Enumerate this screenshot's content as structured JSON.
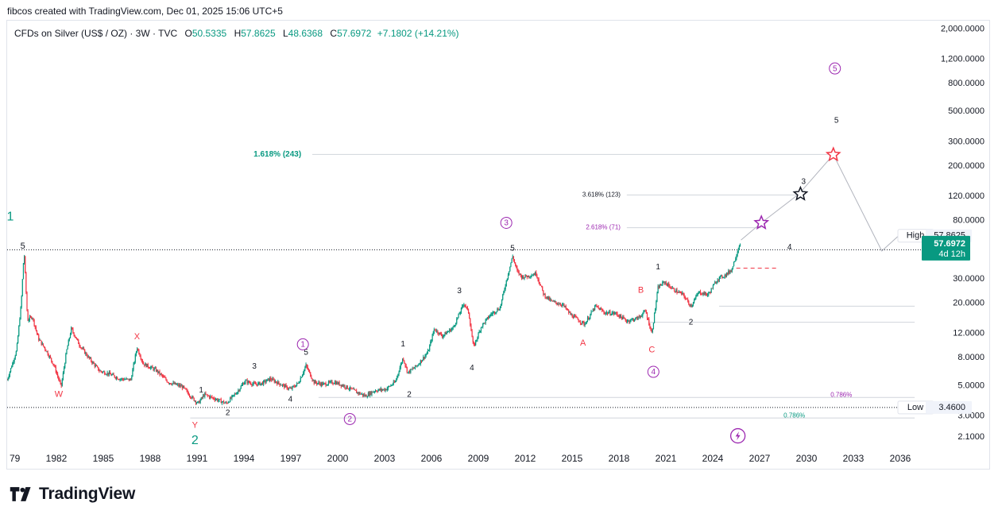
{
  "attribution": "fibcos created with TradingView.com, Dec 01, 2025 15:06 UTC+5",
  "legend": {
    "symbol": "CFDs on Silver (US$ / OZ) · 3W · TVC",
    "open_label": "O",
    "open": "50.5335",
    "high_label": "H",
    "high": "57.8625",
    "low_label": "L",
    "low": "48.6368",
    "close_label": "C",
    "close": "57.6972",
    "change": "+7.1802 (+14.21%)"
  },
  "branding": {
    "logo_text": "TradingView",
    "logo_icon": "tradingview-logo-icon"
  },
  "colors": {
    "up": "#089981",
    "down": "#f23645",
    "wave_purple": "#9c27b0",
    "wave_teal": "#089981",
    "wave_red": "#f23645",
    "text": "#131722",
    "grid_line": "#d1d4dc"
  },
  "chart_data": {
    "type": "candlestick",
    "scale": "log",
    "ylim": [
      1.75,
      2300
    ],
    "xlim": [
      1979.0,
      2037.5
    ],
    "x_ticks": [
      "79",
      "1982",
      "1985",
      "1988",
      "1991",
      "1994",
      "1997",
      "2000",
      "2003",
      "2006",
      "2009",
      "2012",
      "2015",
      "2018",
      "2021",
      "2024",
      "2027",
      "2030",
      "2033",
      "2036"
    ],
    "y_ticks": [
      {
        "value": 2000,
        "label": "2,000.0000"
      },
      {
        "value": 1200,
        "label": "1,200.0000"
      },
      {
        "value": 800,
        "label": "800.0000"
      },
      {
        "value": 500,
        "label": "500.0000"
      },
      {
        "value": 300,
        "label": "300.0000"
      },
      {
        "value": 200,
        "label": "200.0000"
      },
      {
        "value": 120,
        "label": "120.0000"
      },
      {
        "value": 80,
        "label": "80.0000"
      },
      {
        "value": 30,
        "label": "30.0000"
      },
      {
        "value": 20,
        "label": "20.0000"
      },
      {
        "value": 12,
        "label": "12.0000"
      },
      {
        "value": 8,
        "label": "8.0000"
      },
      {
        "value": 5,
        "label": "5.0000"
      },
      {
        "value": 3,
        "label": "3.0000"
      },
      {
        "value": 2.1,
        "label": "2.1000"
      }
    ],
    "price_path": [
      [
        1979.0,
        5.5
      ],
      [
        1979.6,
        9
      ],
      [
        1979.9,
        20
      ],
      [
        1980.08,
        48
      ],
      [
        1980.3,
        15
      ],
      [
        1980.6,
        16
      ],
      [
        1981.0,
        11
      ],
      [
        1981.5,
        9
      ],
      [
        1982.0,
        7
      ],
      [
        1982.45,
        4.9
      ],
      [
        1982.8,
        9
      ],
      [
        1983.1,
        13
      ],
      [
        1983.6,
        10
      ],
      [
        1984.2,
        8
      ],
      [
        1984.9,
        6.4
      ],
      [
        1985.5,
        6.1
      ],
      [
        1986.2,
        5.6
      ],
      [
        1986.9,
        5.5
      ],
      [
        1987.3,
        9.5
      ],
      [
        1987.7,
        7.2
      ],
      [
        1988.5,
        6.5
      ],
      [
        1989.3,
        5.3
      ],
      [
        1990.2,
        4.9
      ],
      [
        1990.8,
        4.1
      ],
      [
        1991.2,
        3.7
      ],
      [
        1991.6,
        4.3
      ],
      [
        1992.3,
        4.0
      ],
      [
        1993.0,
        3.7
      ],
      [
        1993.7,
        4.5
      ],
      [
        1994.2,
        5.4
      ],
      [
        1994.8,
        5.1
      ],
      [
        1995.3,
        5.2
      ],
      [
        1995.8,
        5.6
      ],
      [
        1996.5,
        5.1
      ],
      [
        1997.1,
        4.7
      ],
      [
        1997.6,
        5.2
      ],
      [
        1998.1,
        7.0
      ],
      [
        1998.6,
        5.3
      ],
      [
        1999.2,
        5.1
      ],
      [
        1999.9,
        5.3
      ],
      [
        2000.5,
        5.0
      ],
      [
        2001.3,
        4.5
      ],
      [
        2001.9,
        4.2
      ],
      [
        2002.5,
        4.6
      ],
      [
        2003.2,
        4.7
      ],
      [
        2003.8,
        5.3
      ],
      [
        2004.3,
        8.0
      ],
      [
        2004.6,
        6.2
      ],
      [
        2005.2,
        7.0
      ],
      [
        2005.9,
        8.8
      ],
      [
        2006.3,
        13.0
      ],
      [
        2006.8,
        11.5
      ],
      [
        2007.5,
        13.2
      ],
      [
        2008.2,
        20.0
      ],
      [
        2008.5,
        17.0
      ],
      [
        2008.8,
        9.5
      ],
      [
        2009.3,
        13.5
      ],
      [
        2009.9,
        16.5
      ],
      [
        2010.5,
        18.5
      ],
      [
        2010.9,
        29.0
      ],
      [
        2011.3,
        44.0
      ],
      [
        2011.6,
        34.0
      ],
      [
        2011.9,
        31.0
      ],
      [
        2012.3,
        31.5
      ],
      [
        2012.8,
        33.0
      ],
      [
        2013.3,
        23.0
      ],
      [
        2013.8,
        20.5
      ],
      [
        2014.5,
        19.5
      ],
      [
        2015.0,
        16.5
      ],
      [
        2015.9,
        14.0
      ],
      [
        2016.6,
        19.0
      ],
      [
        2017.2,
        17.0
      ],
      [
        2017.9,
        16.8
      ],
      [
        2018.6,
        14.8
      ],
      [
        2019.3,
        15.5
      ],
      [
        2019.8,
        17.5
      ],
      [
        2020.2,
        12.0
      ],
      [
        2020.6,
        26.0
      ],
      [
        2021.0,
        28.5
      ],
      [
        2021.6,
        25.0
      ],
      [
        2022.2,
        23.0
      ],
      [
        2022.7,
        19.0
      ],
      [
        2023.2,
        24.0
      ],
      [
        2023.8,
        23.0
      ],
      [
        2024.4,
        30.0
      ],
      [
        2024.9,
        32.0
      ],
      [
        2025.3,
        35.0
      ],
      [
        2025.9,
        57.7
      ]
    ],
    "projection": [
      [
        2025.9,
        57.7
      ],
      [
        2027.2,
        77
      ],
      [
        2029.6,
        125
      ],
      [
        2031.8,
        242
      ],
      [
        2034.9,
        48
      ],
      [
        2036.3,
        67
      ]
    ],
    "horizontal_lines": [
      {
        "name": "previous-high-line",
        "value": 49,
        "x1": 1979.0,
        "x2": 2037.5,
        "style": "dotted",
        "color": "#131722"
      },
      {
        "name": "low-line",
        "value": 3.46,
        "x1": 1979.0,
        "x2": 2037.5,
        "style": "dotted",
        "color": "#131722"
      },
      {
        "name": "fib-1618-line",
        "value": 243,
        "x1": 1998.5,
        "x2": 2031.8,
        "style": "solid",
        "color": "#d1d4dc"
      },
      {
        "name": "fib-3618-line",
        "value": 123,
        "x1": 2018.6,
        "x2": 2029.7,
        "style": "solid",
        "color": "#d1d4dc"
      },
      {
        "name": "fib-2618-line",
        "value": 71,
        "x1": 2018.6,
        "x2": 2027.2,
        "style": "solid",
        "color": "#d1d4dc"
      },
      {
        "name": "level-19-line",
        "value": 19,
        "x1": 2024.5,
        "x2": 2037.0,
        "style": "solid",
        "color": "#d1d4dc"
      },
      {
        "name": "level-14-line",
        "value": 14.5,
        "x1": 2020.0,
        "x2": 2037.0,
        "style": "solid",
        "color": "#d1d4dc"
      },
      {
        "name": "fib-0786-upper-line",
        "value": 4.1,
        "x1": 1998.9,
        "x2": 2037.0,
        "style": "solid",
        "color": "#d1d4dc"
      },
      {
        "name": "fib-0786-lower-line",
        "value": 2.9,
        "x1": 1990.7,
        "x2": 2037.0,
        "style": "solid",
        "color": "#d1d4dc"
      },
      {
        "name": "support-dashed-line",
        "value": 36,
        "x1": 2025.6,
        "x2": 2028.3,
        "style": "dashed",
        "color": "#f23645"
      }
    ],
    "annotations": [
      {
        "text": "1.618% (243)",
        "x": 1997.8,
        "y": 243,
        "color": "#089981",
        "size": 10,
        "weight": "bold",
        "anchor": "end"
      },
      {
        "text": "3.618% (123)",
        "x": 2018.2,
        "y": 123,
        "color": "#131722",
        "size": 8,
        "weight": "normal",
        "anchor": "end"
      },
      {
        "text": "2.618% (71)",
        "x": 2018.2,
        "y": 71,
        "color": "#9c27b0",
        "size": 8,
        "weight": "normal",
        "anchor": "end"
      },
      {
        "text": "0.786%",
        "x": 2033.0,
        "y": 4.25,
        "color": "#9c27b0",
        "size": 8,
        "weight": "normal",
        "anchor": "end"
      },
      {
        "text": "0.786%",
        "x": 2030.0,
        "y": 3.0,
        "color": "#089981",
        "size": 8,
        "weight": "normal",
        "anchor": "end"
      },
      {
        "text": "1",
        "x": 1979.2,
        "y": 85,
        "color": "#089981",
        "size": 16,
        "weight": "normal",
        "anchor": "middle"
      },
      {
        "text": "5",
        "x": 1980.0,
        "y": 52,
        "color": "#131722",
        "size": 11,
        "weight": "normal",
        "anchor": "middle"
      },
      {
        "text": "W",
        "x": 1982.3,
        "y": 4.3,
        "color": "#f23645",
        "size": 11,
        "weight": "normal",
        "anchor": "middle"
      },
      {
        "text": "X",
        "x": 1987.3,
        "y": 11.3,
        "color": "#f23645",
        "size": 11,
        "weight": "normal",
        "anchor": "middle"
      },
      {
        "text": "Y",
        "x": 1991.0,
        "y": 2.55,
        "color": "#f23645",
        "size": 11,
        "weight": "normal",
        "anchor": "middle"
      },
      {
        "text": "2",
        "x": 1991.0,
        "y": 1.98,
        "color": "#089981",
        "size": 16,
        "weight": "normal",
        "anchor": "middle"
      },
      {
        "text": "1",
        "x": 1991.4,
        "y": 4.6,
        "color": "#131722",
        "size": 10,
        "weight": "normal",
        "anchor": "middle"
      },
      {
        "text": "2",
        "x": 1993.1,
        "y": 3.15,
        "color": "#131722",
        "size": 10,
        "weight": "normal",
        "anchor": "middle"
      },
      {
        "text": "3",
        "x": 1994.8,
        "y": 6.9,
        "color": "#131722",
        "size": 10,
        "weight": "normal",
        "anchor": "middle"
      },
      {
        "text": "4",
        "x": 1997.1,
        "y": 3.95,
        "color": "#131722",
        "size": 10,
        "weight": "normal",
        "anchor": "middle"
      },
      {
        "text": "5",
        "x": 1998.1,
        "y": 8.7,
        "color": "#131722",
        "size": 10,
        "weight": "normal",
        "anchor": "middle"
      },
      {
        "text": "1",
        "x": 2004.3,
        "y": 10.0,
        "color": "#131722",
        "size": 10,
        "weight": "normal",
        "anchor": "middle"
      },
      {
        "text": "2",
        "x": 2004.7,
        "y": 4.3,
        "color": "#131722",
        "size": 10,
        "weight": "normal",
        "anchor": "middle"
      },
      {
        "text": "3",
        "x": 2007.9,
        "y": 24.5,
        "color": "#131722",
        "size": 10,
        "weight": "normal",
        "anchor": "middle"
      },
      {
        "text": "4",
        "x": 2008.7,
        "y": 6.7,
        "color": "#131722",
        "size": 10,
        "weight": "normal",
        "anchor": "middle"
      },
      {
        "text": "5",
        "x": 2011.3,
        "y": 50,
        "color": "#131722",
        "size": 10,
        "weight": "normal",
        "anchor": "middle"
      },
      {
        "text": "A",
        "x": 2015.8,
        "y": 10.2,
        "color": "#f23645",
        "size": 11,
        "weight": "normal",
        "anchor": "middle"
      },
      {
        "text": "B",
        "x": 2019.5,
        "y": 24.8,
        "color": "#f23645",
        "size": 11,
        "weight": "normal",
        "anchor": "middle"
      },
      {
        "text": "C",
        "x": 2020.2,
        "y": 9.1,
        "color": "#f23645",
        "size": 11,
        "weight": "normal",
        "anchor": "middle"
      },
      {
        "text": "1",
        "x": 2020.6,
        "y": 36.5,
        "color": "#131722",
        "size": 10,
        "weight": "normal",
        "anchor": "middle"
      },
      {
        "text": "2",
        "x": 2022.7,
        "y": 14.4,
        "color": "#131722",
        "size": 10,
        "weight": "normal",
        "anchor": "middle"
      },
      {
        "text": "3",
        "x": 2029.9,
        "y": 153,
        "color": "#131722",
        "size": 10,
        "weight": "normal",
        "anchor": "middle"
      },
      {
        "text": "4",
        "x": 2029.0,
        "y": 51,
        "color": "#131722",
        "size": 10,
        "weight": "normal",
        "anchor": "middle"
      },
      {
        "text": "5",
        "x": 2032.0,
        "y": 430,
        "color": "#131722",
        "size": 10,
        "weight": "normal",
        "anchor": "middle"
      }
    ],
    "circled_labels": [
      {
        "text": "1",
        "x": 1997.9,
        "y": 10.0,
        "color": "#9c27b0"
      },
      {
        "text": "2",
        "x": 2000.9,
        "y": 2.85,
        "color": "#9c27b0"
      },
      {
        "text": "3",
        "x": 2010.9,
        "y": 77,
        "color": "#9c27b0"
      },
      {
        "text": "4",
        "x": 2020.3,
        "y": 6.3,
        "color": "#9c27b0"
      },
      {
        "text": "5",
        "x": 2031.9,
        "y": 1030,
        "color": "#9c27b0"
      }
    ],
    "stars": [
      {
        "x": 2027.2,
        "y": 77,
        "color": "#9c27b0"
      },
      {
        "x": 2029.7,
        "y": 125,
        "color": "#131722"
      },
      {
        "x": 2031.8,
        "y": 242,
        "color": "#f23645"
      }
    ],
    "flash_icon": {
      "x": 2025.7,
      "y": 2.15,
      "color": "#9c27b0"
    },
    "price_tags": [
      {
        "title": "High",
        "value": "57.8625",
        "price": 62,
        "style": "outline"
      },
      {
        "title": "",
        "value": "57.6972",
        "extra": "4d 12h",
        "price": 52,
        "style": "filled"
      },
      {
        "title": "Low",
        "value": "3.4600",
        "price": 3.46,
        "style": "outline"
      }
    ]
  }
}
